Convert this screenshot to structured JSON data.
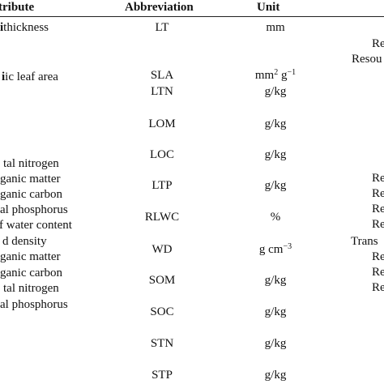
{
  "header": {
    "attribute": "tribute",
    "abbreviation": "Abbreviation",
    "unit": "Unit"
  },
  "attributes": [
    "thickness",
    "ic leaf area",
    "tal nitrogen",
    "ganic matter",
    "ganic carbon",
    "al phosphorus",
    "f water content",
    "d density",
    "ganic matter",
    "ganic carbon",
    "tal nitrogen",
    "al phosphorus"
  ],
  "rows": [
    {
      "abbr": "LT",
      "unit": "mm",
      "unit_sup": "",
      "unit_tail": ""
    },
    {
      "abbr": "SLA",
      "unit": "mm",
      "unit_sup": "2",
      "unit_tail": " g",
      "unit_sup2": "−1"
    },
    {
      "abbr": "LTN",
      "unit": "g/kg"
    },
    {
      "abbr": "LOM",
      "unit": "g/kg"
    },
    {
      "abbr": "LOC",
      "unit": "g/kg"
    },
    {
      "abbr": "LTP",
      "unit": "g/kg"
    },
    {
      "abbr": "RLWC",
      "unit": "%"
    },
    {
      "abbr": "WD",
      "unit": "g cm",
      "unit_sup": "−3"
    },
    {
      "abbr": "SOM",
      "unit": "g/kg"
    },
    {
      "abbr": "SOC",
      "unit": "g/kg"
    },
    {
      "abbr": "STN",
      "unit": "g/kg"
    },
    {
      "abbr": "STP",
      "unit": "g/kg"
    }
  ],
  "sources": [
    "Re",
    "Resou",
    "Re",
    "Re",
    "Re",
    "Re",
    "Trans",
    "Re",
    "Re",
    "Re"
  ]
}
